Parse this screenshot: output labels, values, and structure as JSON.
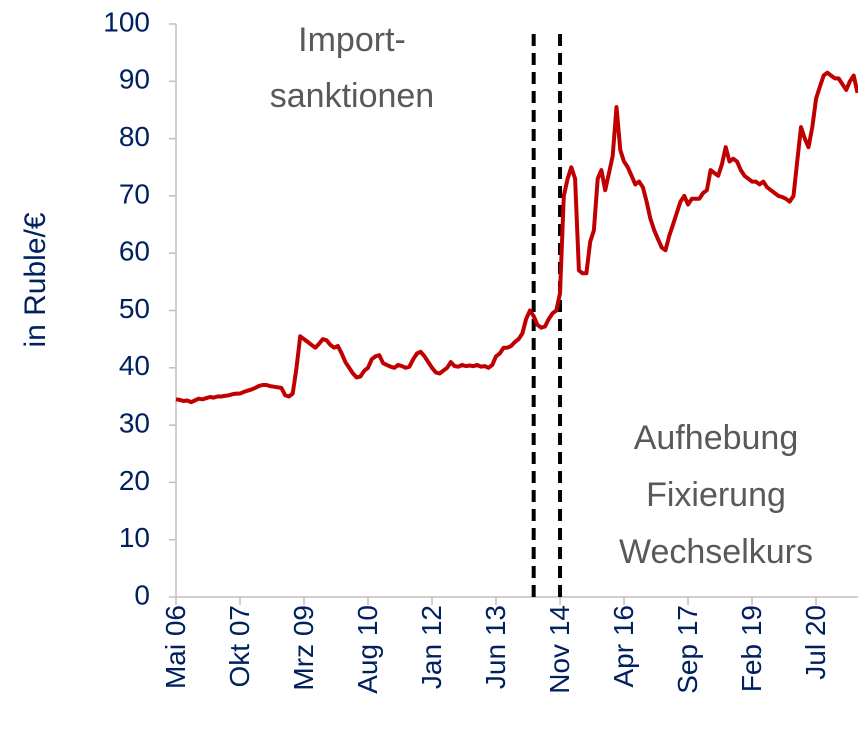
{
  "chart_data": {
    "type": "line",
    "ylabel": "in Ruble/€",
    "color": "#c00000",
    "ylim": [
      0,
      100
    ],
    "yticks": [
      0,
      10,
      20,
      30,
      40,
      50,
      60,
      70,
      80,
      90,
      100
    ],
    "categories": [
      "Mai 06",
      null,
      null,
      null,
      null,
      null,
      null,
      null,
      null,
      null,
      null,
      null,
      null,
      null,
      null,
      null,
      null,
      "Okt 07",
      null,
      null,
      null,
      null,
      null,
      null,
      null,
      null,
      null,
      null,
      null,
      null,
      null,
      null,
      null,
      null,
      "Mrz 09",
      null,
      null,
      null,
      null,
      null,
      null,
      null,
      null,
      null,
      null,
      null,
      null,
      null,
      null,
      null,
      null,
      "Aug 10",
      null,
      null,
      null,
      null,
      null,
      null,
      null,
      null,
      null,
      null,
      null,
      null,
      null,
      null,
      null,
      null,
      "Jan 12",
      null,
      null,
      null,
      null,
      null,
      null,
      null,
      null,
      null,
      null,
      null,
      null,
      null,
      null,
      null,
      null,
      "Jun 13",
      null,
      null,
      null,
      null,
      null,
      null,
      null,
      null,
      null,
      null,
      null,
      null,
      null,
      null,
      null,
      null,
      "Nov 14",
      null,
      null,
      null,
      null,
      null,
      null,
      null,
      null,
      null,
      null,
      null,
      null,
      null,
      null,
      null,
      null,
      "Apr 16",
      null,
      null,
      null,
      null,
      null,
      null,
      null,
      null,
      null,
      null,
      null,
      null,
      null,
      null,
      null,
      null,
      "Sep 17",
      null,
      null,
      null,
      null,
      null,
      null,
      null,
      null,
      null,
      null,
      null,
      null,
      null,
      null,
      null,
      null,
      "Feb 19",
      null,
      null,
      null,
      null,
      null,
      null,
      null,
      null,
      null,
      null,
      null,
      null,
      null,
      null,
      null,
      null,
      "Jul 20",
      null,
      null,
      null,
      null,
      null,
      null,
      null,
      null,
      null,
      null,
      null
    ],
    "values": [
      34.5,
      34.4,
      34.2,
      34.3,
      34.0,
      34.3,
      34.6,
      34.5,
      34.7,
      34.9,
      34.8,
      35.0,
      35.0,
      35.1,
      35.2,
      35.4,
      35.5,
      35.5,
      35.8,
      36.0,
      36.2,
      36.5,
      36.8,
      37.0,
      37.0,
      36.8,
      36.7,
      36.6,
      36.5,
      35.2,
      35.0,
      35.5,
      40.0,
      45.5,
      45.0,
      44.5,
      44.0,
      43.5,
      44.2,
      45.0,
      44.8,
      44.0,
      43.5,
      43.8,
      42.5,
      41.0,
      40.0,
      39.0,
      38.3,
      38.5,
      39.5,
      40.0,
      41.5,
      42.0,
      42.2,
      40.8,
      40.5,
      40.2,
      40.0,
      40.5,
      40.3,
      40.0,
      40.2,
      41.5,
      42.5,
      42.8,
      42.0,
      41.0,
      40.0,
      39.2,
      39.0,
      39.5,
      40.0,
      41.0,
      40.3,
      40.2,
      40.5,
      40.3,
      40.4,
      40.3,
      40.5,
      40.2,
      40.3,
      40.0,
      40.5,
      42.0,
      42.5,
      43.5,
      43.5,
      43.8,
      44.5,
      45.0,
      46.0,
      48.5,
      50.0,
      49.0,
      47.5,
      47.0,
      47.2,
      48.5,
      49.5,
      50.0,
      53.0,
      70.0,
      73.0,
      75.0,
      73.0,
      57.0,
      56.5,
      56.5,
      62.0,
      64.0,
      73.0,
      74.5,
      71.0,
      74.0,
      77.0,
      85.5,
      78.0,
      76.0,
      75.0,
      73.5,
      72.0,
      72.5,
      71.5,
      69.0,
      66.0,
      64.0,
      62.5,
      61.0,
      60.5,
      63.0,
      65.0,
      67.0,
      69.0,
      70.0,
      68.5,
      69.5,
      69.5,
      69.5,
      70.5,
      71.0,
      74.5,
      74.0,
      73.5,
      75.5,
      78.5,
      76.0,
      76.5,
      76.0,
      74.5,
      73.5,
      73.0,
      72.5,
      72.5,
      72.0,
      72.5,
      71.5,
      71.0,
      70.5,
      70.0,
      69.8,
      69.5,
      69.0,
      70.0,
      76.0,
      82.0,
      80.0,
      78.5,
      82.0,
      87.0,
      89.0,
      91.0,
      91.5,
      91.0,
      90.5,
      90.5,
      89.5,
      88.5,
      90.0,
      91.0,
      88.0
    ],
    "event_lines": [
      95,
      102
    ],
    "annotations": [
      {
        "lines": [
          "Import-",
          "sanktionen"
        ]
      },
      {
        "lines": [
          "Aufhebung",
          "Fixierung",
          "Wechselkurs"
        ]
      }
    ]
  }
}
